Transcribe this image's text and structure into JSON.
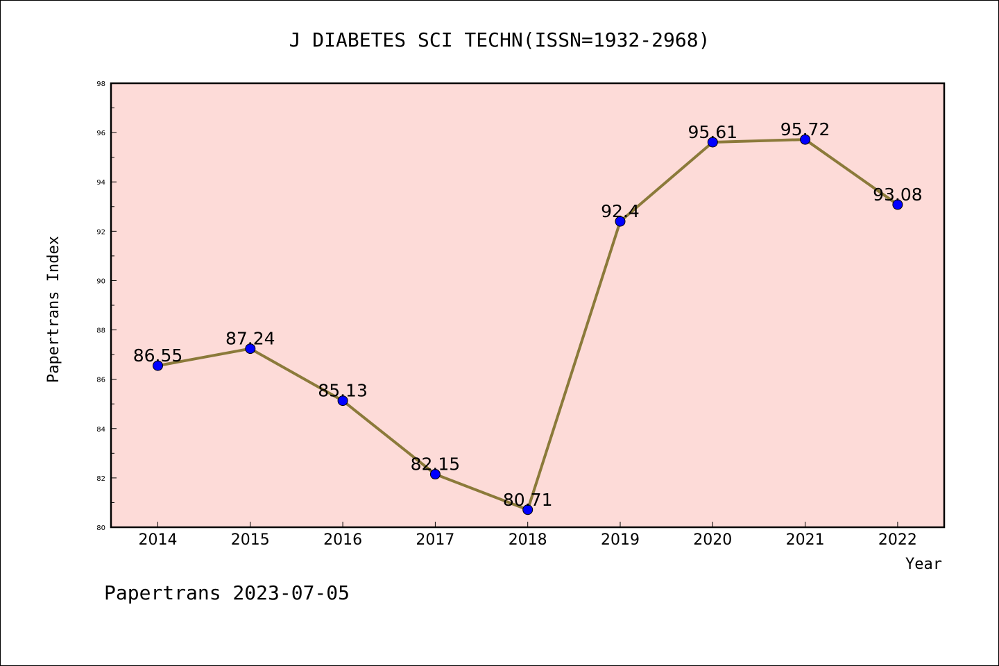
{
  "chart_data": {
    "type": "line",
    "title": "J DIABETES SCI TECHN(ISSN=1932-2968)",
    "xlabel": "Year",
    "ylabel": "Papertrans Index",
    "x": [
      "2014",
      "2015",
      "2016",
      "2017",
      "2018",
      "2019",
      "2020",
      "2021",
      "2022"
    ],
    "values": [
      86.55,
      87.24,
      85.13,
      82.15,
      80.71,
      92.4,
      95.61,
      95.72,
      93.08
    ],
    "data_labels": [
      "86.55",
      "87.24",
      "85.13",
      "82.15",
      "80.71",
      "92.4",
      "95.61",
      "95.72",
      "93.08"
    ],
    "ylim": [
      80,
      98
    ],
    "yticks": [
      "80",
      "82",
      "84",
      "86",
      "88",
      "90",
      "92",
      "94",
      "96",
      "98"
    ],
    "grid": false,
    "colors": {
      "plot_background": "#fddbd8",
      "line": "#8b7a3a",
      "marker": "#0000ff"
    }
  },
  "footer": "Papertrans 2023-07-05"
}
